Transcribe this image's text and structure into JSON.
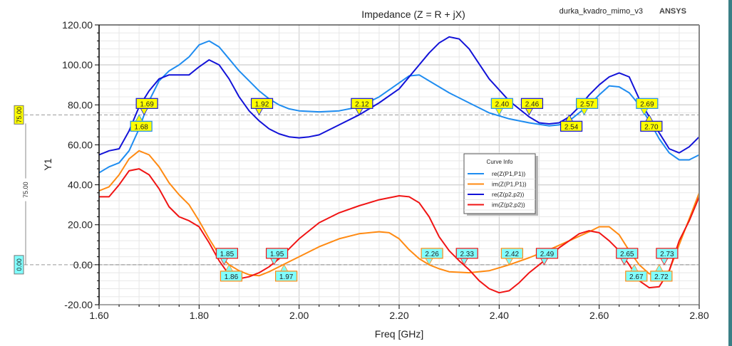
{
  "chart_data": {
    "type": "line",
    "title": "Impedance (Z = R + jX)",
    "design_name": "durka_kvadro_mimo_v3",
    "brand": "ANSYS",
    "xlabel": "Freq [GHz]",
    "ylabel": "Y1",
    "xlim": [
      1.6,
      2.8
    ],
    "ylim": [
      -20,
      120
    ],
    "grid": true,
    "x_ticks": [
      "1.60",
      "1.80",
      "2.00",
      "2.20",
      "2.40",
      "2.60",
      "2.80"
    ],
    "x_tick_values": [
      1.6,
      1.8,
      2.0,
      2.2,
      2.4,
      2.6,
      2.8
    ],
    "y_ticks": [
      "120.00",
      "100.00",
      "80.00",
      "60.00",
      "40.00",
      "20.00",
      "0.00",
      "-20.00"
    ],
    "y_tick_values": [
      120,
      100,
      80,
      60,
      40,
      20,
      0,
      -20
    ],
    "legend": {
      "title": "Curve Info",
      "position": "center-right",
      "entries": [
        "re(Z(P1,P1))",
        "im(Z(P1,P1))",
        "re(Z(p2,p2))",
        "im(Z(p2,p2))"
      ]
    },
    "series": [
      {
        "name": "re(Z(P1,P1))",
        "color": "#1e8cf0",
        "x": [
          1.6,
          1.62,
          1.64,
          1.66,
          1.68,
          1.7,
          1.72,
          1.74,
          1.76,
          1.78,
          1.8,
          1.82,
          1.84,
          1.86,
          1.88,
          1.9,
          1.92,
          1.94,
          1.96,
          1.98,
          2.0,
          2.04,
          2.08,
          2.12,
          2.16,
          2.2,
          2.22,
          2.24,
          2.26,
          2.3,
          2.34,
          2.38,
          2.42,
          2.46,
          2.5,
          2.52,
          2.54,
          2.56,
          2.58,
          2.6,
          2.62,
          2.64,
          2.66,
          2.68,
          2.7,
          2.72,
          2.74,
          2.76,
          2.78,
          2.8
        ],
        "y": [
          46,
          49,
          51,
          57,
          68,
          82,
          92,
          97,
          100,
          104,
          110,
          112,
          109,
          103,
          97,
          92,
          87,
          83,
          80,
          78,
          77,
          76.5,
          77,
          79,
          84,
          91,
          94.5,
          95,
          92,
          86,
          81,
          76,
          73,
          71,
          69.5,
          70,
          72,
          76,
          80,
          85,
          89.5,
          89,
          86,
          80,
          72,
          63,
          56,
          52.5,
          52.5,
          55
        ]
      },
      {
        "name": "im(Z(P1,P1))",
        "color": "#ff8a12",
        "x": [
          1.6,
          1.62,
          1.64,
          1.66,
          1.68,
          1.7,
          1.72,
          1.74,
          1.76,
          1.78,
          1.8,
          1.82,
          1.84,
          1.86,
          1.88,
          1.9,
          1.92,
          1.94,
          1.96,
          1.98,
          2.0,
          2.04,
          2.08,
          2.12,
          2.16,
          2.18,
          2.2,
          2.22,
          2.24,
          2.26,
          2.28,
          2.3,
          2.34,
          2.38,
          2.42,
          2.46,
          2.5,
          2.54,
          2.58,
          2.6,
          2.62,
          2.64,
          2.66,
          2.68,
          2.7,
          2.72,
          2.74,
          2.76,
          2.78,
          2.8
        ],
        "y": [
          37,
          39,
          45,
          53,
          57,
          55,
          49,
          41,
          35,
          30,
          22,
          13,
          5,
          0,
          -3,
          -5,
          -5.5,
          -3.5,
          -1,
          1.5,
          4,
          9,
          13,
          15.5,
          16.5,
          16,
          13,
          7.5,
          3,
          0,
          -2,
          -3.5,
          -4,
          -3,
          0,
          3.5,
          7.5,
          12,
          16.5,
          19,
          19,
          15,
          7,
          0,
          -4.5,
          -5,
          -3,
          10,
          23,
          36
        ]
      },
      {
        "name": "re(Z(p2,p2))",
        "color": "#1212d8",
        "x": [
          1.6,
          1.62,
          1.64,
          1.66,
          1.68,
          1.7,
          1.72,
          1.74,
          1.76,
          1.78,
          1.8,
          1.82,
          1.84,
          1.86,
          1.88,
          1.9,
          1.92,
          1.94,
          1.96,
          1.98,
          2.0,
          2.02,
          2.04,
          2.08,
          2.12,
          2.16,
          2.2,
          2.24,
          2.26,
          2.28,
          2.3,
          2.32,
          2.34,
          2.38,
          2.42,
          2.46,
          2.48,
          2.5,
          2.52,
          2.54,
          2.56,
          2.58,
          2.6,
          2.62,
          2.64,
          2.66,
          2.68,
          2.7,
          2.72,
          2.74,
          2.76,
          2.78,
          2.8
        ],
        "y": [
          55,
          57,
          58,
          67,
          79,
          87,
          93,
          95,
          95,
          95,
          99,
          102.5,
          100,
          93,
          84,
          77,
          72,
          68,
          65.5,
          64,
          63.5,
          64,
          65,
          70,
          75,
          81,
          88,
          100,
          106,
          111,
          114,
          113,
          108,
          93,
          82,
          74,
          71,
          70.5,
          71,
          74,
          79,
          85,
          90,
          94,
          96,
          94,
          83,
          74,
          66,
          58,
          56,
          59,
          64
        ]
      },
      {
        "name": "im(Z(p2,p2))",
        "color": "#f01414",
        "x": [
          1.6,
          1.62,
          1.64,
          1.66,
          1.68,
          1.7,
          1.72,
          1.74,
          1.76,
          1.78,
          1.8,
          1.82,
          1.84,
          1.86,
          1.88,
          1.9,
          1.92,
          1.94,
          1.96,
          1.98,
          2.0,
          2.04,
          2.08,
          2.12,
          2.16,
          2.2,
          2.22,
          2.24,
          2.26,
          2.28,
          2.3,
          2.32,
          2.34,
          2.36,
          2.38,
          2.4,
          2.42,
          2.44,
          2.46,
          2.48,
          2.5,
          2.52,
          2.54,
          2.56,
          2.58,
          2.6,
          2.62,
          2.64,
          2.66,
          2.68,
          2.7,
          2.72,
          2.74,
          2.76,
          2.78,
          2.8
        ],
        "y": [
          34,
          34,
          40,
          47,
          48,
          45,
          38,
          29,
          24,
          22,
          19,
          11,
          2,
          -5,
          -7,
          -6,
          -4,
          -1,
          3,
          8,
          13,
          21,
          26,
          29.5,
          32.5,
          34.5,
          34,
          31,
          24,
          14,
          7,
          2,
          -2.5,
          -8,
          -12,
          -14,
          -13,
          -9,
          -4,
          0,
          4,
          8.5,
          12,
          15.5,
          17,
          16,
          12,
          7,
          0,
          -8,
          -11.5,
          -11,
          -3,
          12,
          22,
          34
        ]
      }
    ],
    "reference_lines": [
      {
        "value": 75,
        "label": "75.00",
        "color": "#ffff00"
      },
      {
        "value": 0,
        "label": "0.00",
        "color": "#80ffff"
      }
    ],
    "delta_label": "75.00",
    "markers": [
      {
        "label": "1.69",
        "x": 1.69,
        "series": "re(Z(p2,p2))",
        "ref": 75,
        "side": "above"
      },
      {
        "label": "1.68",
        "x": 1.68,
        "series": "re(Z(P1,P1))",
        "ref": 75,
        "side": "below"
      },
      {
        "label": "1.92",
        "x": 1.92,
        "series": "re(Z(p2,p2))",
        "ref": 75,
        "side": "above"
      },
      {
        "label": "2.12",
        "x": 2.12,
        "series": "re(Z(p2,p2))",
        "ref": 75,
        "side": "above"
      },
      {
        "label": "2.40",
        "x": 2.4,
        "series": "re(Z(P1,P1))",
        "ref": 75,
        "side": "above"
      },
      {
        "label": "2.46",
        "x": 2.46,
        "series": "re(Z(p2,p2))",
        "ref": 75,
        "side": "above"
      },
      {
        "label": "2.57",
        "x": 2.57,
        "series": "re(Z(P1,P1))",
        "ref": 75,
        "side": "above"
      },
      {
        "label": "2.54",
        "x": 2.54,
        "series": "re(Z(p2,p2))",
        "ref": 75,
        "side": "below"
      },
      {
        "label": "2.69",
        "x": 2.69,
        "series": "re(Z(P1,P1))",
        "ref": 75,
        "side": "above"
      },
      {
        "label": "2.70",
        "x": 2.7,
        "series": "re(Z(p2,p2))",
        "ref": 75,
        "side": "below"
      },
      {
        "label": "1.85",
        "x": 1.85,
        "series": "im(Z(p2,p2))",
        "ref": 0,
        "side": "above"
      },
      {
        "label": "1.86",
        "x": 1.86,
        "series": "im(Z(P1,P1))",
        "ref": 0,
        "side": "below"
      },
      {
        "label": "1.95",
        "x": 1.95,
        "series": "im(Z(p2,p2))",
        "ref": 0,
        "side": "above"
      },
      {
        "label": "1.97",
        "x": 1.97,
        "series": "im(Z(P1,P1))",
        "ref": 0,
        "side": "below"
      },
      {
        "label": "2.26",
        "x": 2.26,
        "series": "im(Z(P1,P1))",
        "ref": 0,
        "side": "above"
      },
      {
        "label": "2.33",
        "x": 2.33,
        "series": "im(Z(p2,p2))",
        "ref": 0,
        "side": "above"
      },
      {
        "label": "2.42",
        "x": 2.42,
        "series": "im(Z(P1,P1))",
        "ref": 0,
        "side": "above"
      },
      {
        "label": "2.49",
        "x": 2.49,
        "series": "im(Z(p2,p2))",
        "ref": 0,
        "side": "above"
      },
      {
        "label": "2.65",
        "x": 2.65,
        "series": "im(Z(p2,p2))",
        "ref": 0,
        "side": "above"
      },
      {
        "label": "2.67",
        "x": 2.67,
        "series": "im(Z(P1,P1))",
        "ref": 0,
        "side": "below"
      },
      {
        "label": "2.73",
        "x": 2.73,
        "series": "im(Z(p2,p2))",
        "ref": 0,
        "side": "above"
      },
      {
        "label": "2.72",
        "x": 2.72,
        "series": "im(Z(P1,P1))",
        "ref": 0,
        "side": "below"
      }
    ]
  }
}
